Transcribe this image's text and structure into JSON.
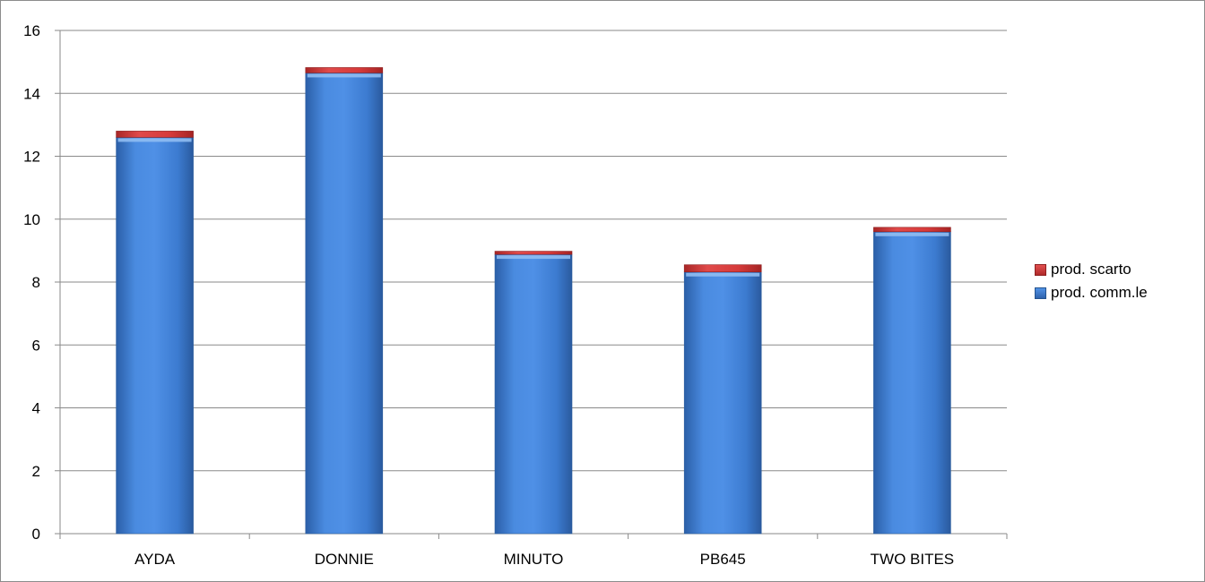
{
  "chart_data": {
    "type": "bar",
    "stacked": true,
    "categories": [
      "AYDA",
      "DONNIE",
      "MINUTO",
      "PB645",
      "TWO BITES"
    ],
    "series": [
      {
        "name": "prod. comm.le",
        "values": [
          12.6,
          14.65,
          8.88,
          8.32,
          9.6
        ],
        "color": "#3f7fd0",
        "icon": "blue-square"
      },
      {
        "name": "prod. scarto",
        "values": [
          0.2,
          0.17,
          0.1,
          0.23,
          0.14
        ],
        "color": "#d0393a",
        "icon": "red-square"
      }
    ],
    "ylim": [
      0,
      16
    ],
    "yticks": [
      0,
      2,
      4,
      6,
      8,
      10,
      12,
      14,
      16
    ],
    "grid": true,
    "legend_position": "right",
    "title": "",
    "xlabel": "",
    "ylabel": ""
  },
  "legend": {
    "items": [
      {
        "label": "prod. scarto",
        "color": "#d0393a"
      },
      {
        "label": "prod. comm.le",
        "color": "#3f7fd0"
      }
    ]
  }
}
